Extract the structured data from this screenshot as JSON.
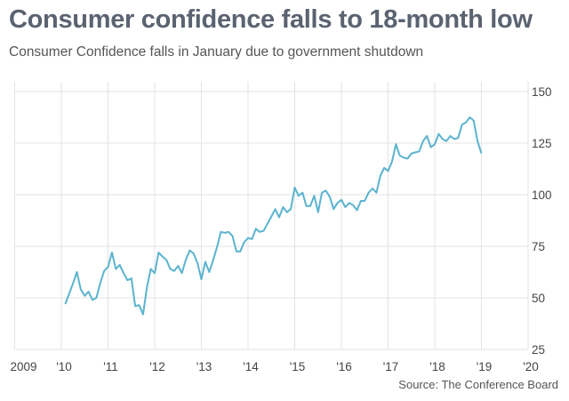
{
  "title": "Consumer confidence falls to 18-month low",
  "subtitle": "Consumer Confidence falls in January due to government shutdown",
  "source": "Source: The Conference Board",
  "chart_data": {
    "type": "line",
    "title": "Consumer confidence falls to 18-month low",
    "subtitle": "Consumer Confidence falls in January due to government shutdown",
    "xlabel": "",
    "ylabel": "",
    "xlim": [
      2009,
      2020
    ],
    "ylim": [
      25,
      150
    ],
    "x_ticks": [
      2009,
      2010,
      2011,
      2012,
      2013,
      2014,
      2015,
      2016,
      2017,
      2018,
      2019,
      2020
    ],
    "x_tick_labels": [
      "2009",
      "'10",
      "'11",
      "'12",
      "'13",
      "'14",
      "'15",
      "'16",
      "'17",
      "'18",
      "'19",
      "'20"
    ],
    "y_ticks": [
      25,
      50,
      75,
      100,
      125,
      150
    ],
    "y_tick_labels": [
      "25",
      "50",
      "75",
      "100",
      "125",
      "150"
    ],
    "y_axis_side": "right",
    "grid": true,
    "line_color": "#5bb3cf",
    "frequency": "monthly",
    "start": "2010-02",
    "end": "2019-01",
    "values": [
      47,
      52,
      57,
      62.5,
      54,
      51,
      53,
      49,
      50,
      57,
      63,
      65,
      72,
      64,
      66,
      62,
      58.5,
      59.5,
      46,
      46.5,
      42,
      55,
      64,
      62,
      72,
      70,
      68.5,
      64,
      63,
      65.5,
      62,
      68.5,
      73,
      71.5,
      67,
      59,
      67.5,
      62.5,
      68,
      74.5,
      82,
      81.5,
      82,
      80,
      72.5,
      72.5,
      77,
      79,
      78.5,
      83.5,
      82,
      82.5,
      86,
      89.5,
      93,
      89,
      94,
      91.5,
      93,
      103.5,
      99.5,
      101,
      94.5,
      94.5,
      99.5,
      91.5,
      101,
      102,
      99,
      93,
      96,
      97.5,
      94,
      96,
      95,
      92.5,
      97,
      97,
      101,
      103,
      101,
      109,
      113,
      111.5,
      116,
      124.5,
      119,
      118,
      117.5,
      120,
      120.5,
      121,
      126,
      128.5,
      123,
      124.5,
      129.5,
      127,
      126,
      128.5,
      127,
      127.5,
      134,
      135,
      137.5,
      136,
      126,
      120
    ]
  },
  "source_note": "Source: The Conference Board"
}
